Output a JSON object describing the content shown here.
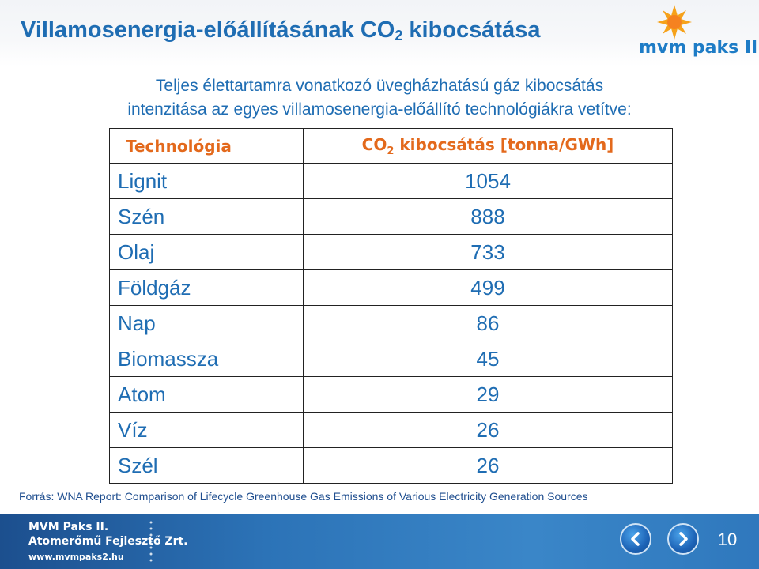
{
  "slide": {
    "title_main": "Villamosenergia-előállításának CO",
    "title_sub": "2",
    "title_end": " kibocsátása",
    "logo_text": "mvm paks II.",
    "subtitle_line1": "Teljes élettartamra vonatkozó üvegházhatású gáz kibocsátás",
    "subtitle_line2": "intenzitása az egyes villamosenergia-előállító technológiákra vetítve:"
  },
  "table": {
    "header_tech": "Technológia",
    "header_value_main": "CO",
    "header_value_sub": "2",
    "header_value_end": " kibocsátás [tonna/GWh]",
    "rows": [
      {
        "tech": "Lignit",
        "value": "1054"
      },
      {
        "tech": "Szén",
        "value": "888"
      },
      {
        "tech": "Olaj",
        "value": "733"
      },
      {
        "tech": "Földgáz",
        "value": "499"
      },
      {
        "tech": "Nap",
        "value": "86"
      },
      {
        "tech": "Biomassza",
        "value": "45"
      },
      {
        "tech": "Atom",
        "value": "29"
      },
      {
        "tech": "Víz",
        "value": "26"
      },
      {
        "tech": "Szél",
        "value": "26"
      }
    ]
  },
  "source": "Forrás: WNA Report: Comparison of Lifecycle Greenhouse Gas Emissions of Various Electricity Generation Sources",
  "footer": {
    "line1": "MVM Paks II.",
    "line2": "Atomerőmű Fejlesztő Zrt.",
    "line3": "www.mvmpaks2.hu",
    "slide_number": "10",
    "prev_icon": "chevron-left-icon",
    "next_icon": "chevron-right-icon"
  },
  "colors": {
    "title": "#1f6db3",
    "header": "#e3691c",
    "footer": "#2c73b7"
  }
}
